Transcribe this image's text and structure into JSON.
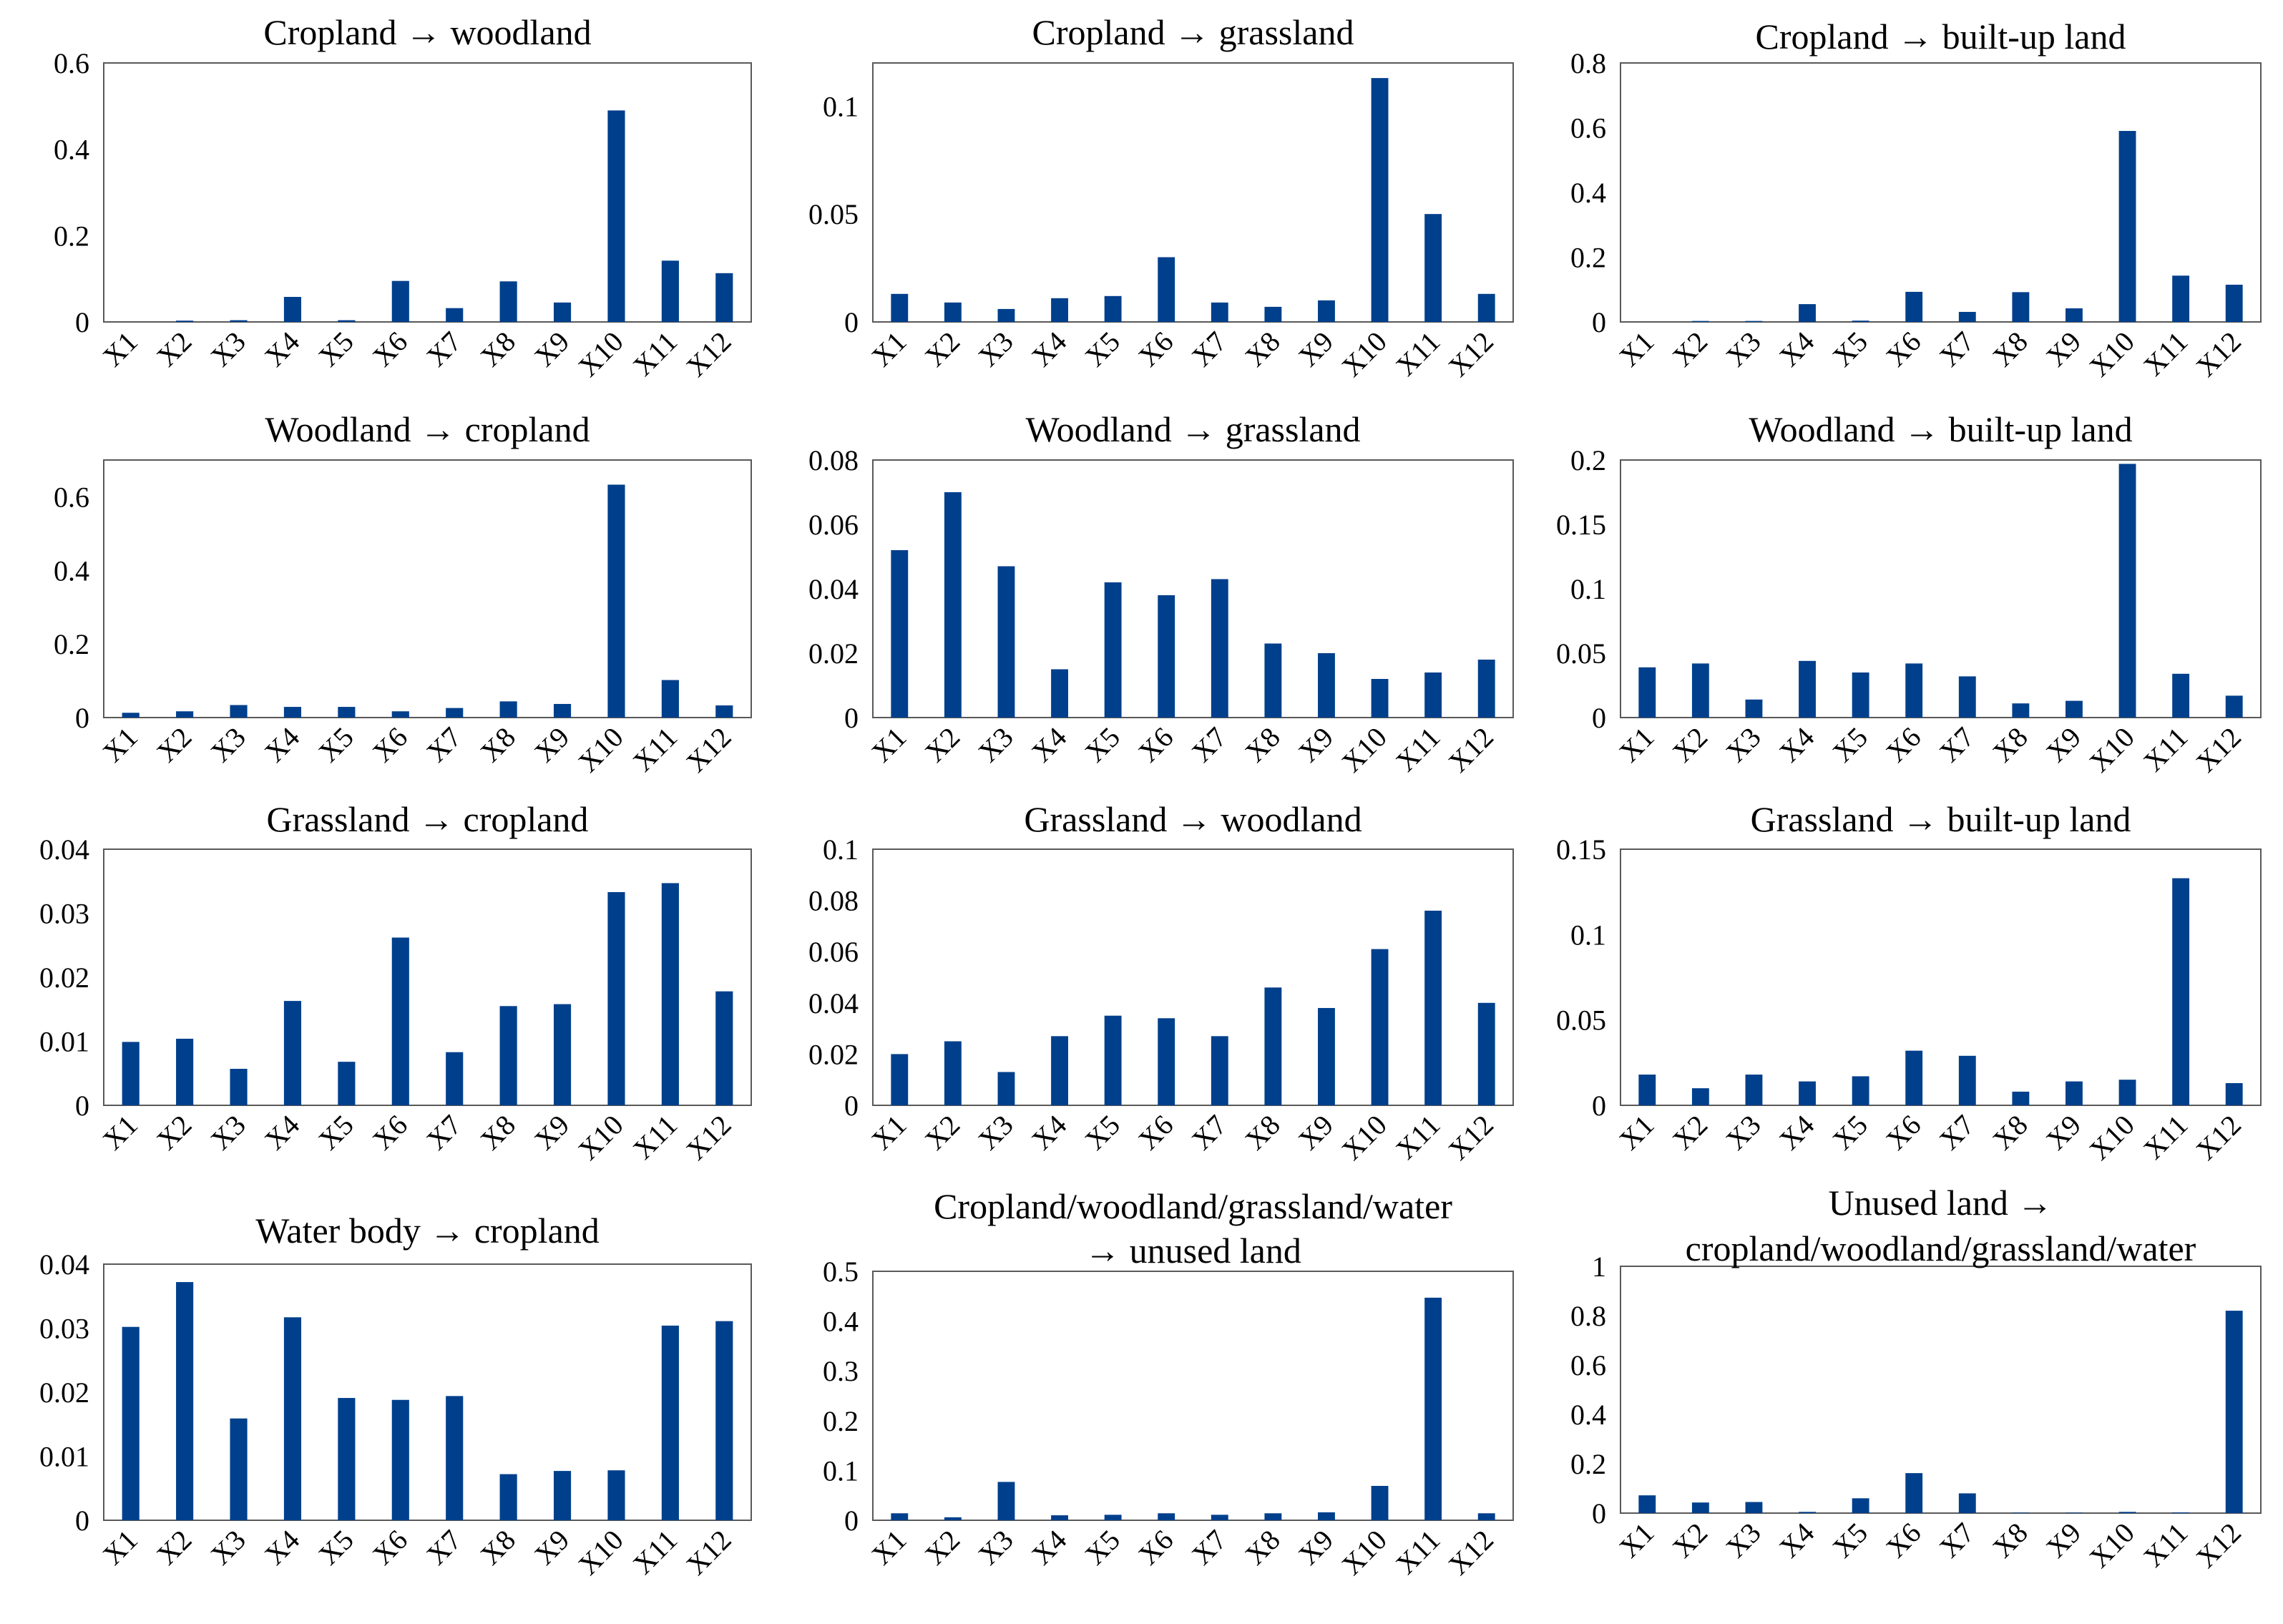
{
  "chart_data": [
    {
      "type": "bar",
      "title": "Cropland → woodland",
      "categories": [
        "X1",
        "X2",
        "X3",
        "X4",
        "X5",
        "X6",
        "X7",
        "X8",
        "X9",
        "X10",
        "X11",
        "X12"
      ],
      "values": [
        0,
        0.003,
        0.004,
        0.058,
        0.004,
        0.095,
        0.032,
        0.094,
        0.045,
        0.49,
        0.142,
        0.113
      ],
      "ylim": [
        0,
        0.6
      ],
      "yticks": [
        "0",
        "0.2",
        "0.4",
        "0.6"
      ]
    },
    {
      "type": "bar",
      "title": "Cropland → grassland",
      "categories": [
        "X1",
        "X2",
        "X3",
        "X4",
        "X5",
        "X6",
        "X7",
        "X8",
        "X9",
        "X10",
        "X11",
        "X12"
      ],
      "values": [
        0.013,
        0.009,
        0.006,
        0.011,
        0.012,
        0.03,
        0.009,
        0.007,
        0.01,
        0.113,
        0.05,
        0.013
      ],
      "ylim": [
        0,
        0.12
      ],
      "yticks": [
        "0",
        "0.05",
        "0.1"
      ]
    },
    {
      "type": "bar",
      "title": "Cropland → built-up land",
      "categories": [
        "X1",
        "X2",
        "X3",
        "X4",
        "X5",
        "X6",
        "X7",
        "X8",
        "X9",
        "X10",
        "X11",
        "X12"
      ],
      "values": [
        0,
        0.003,
        0.003,
        0.055,
        0.004,
        0.093,
        0.031,
        0.092,
        0.042,
        0.59,
        0.143,
        0.115
      ],
      "ylim": [
        0,
        0.8
      ],
      "yticks": [
        "0",
        "0.2",
        "0.4",
        "0.6",
        "0.8"
      ]
    },
    {
      "type": "bar",
      "title": "Woodland → cropland",
      "categories": [
        "X1",
        "X2",
        "X3",
        "X4",
        "X5",
        "X6",
        "X7",
        "X8",
        "X9",
        "X10",
        "X11",
        "X12"
      ],
      "values": [
        0.013,
        0.017,
        0.034,
        0.029,
        0.029,
        0.017,
        0.026,
        0.044,
        0.037,
        0.633,
        0.102,
        0.033
      ],
      "ylim": [
        0,
        0.7
      ],
      "yticks": [
        "0",
        "0.2",
        "0.4",
        "0.6"
      ]
    },
    {
      "type": "bar",
      "title": "Woodland → grassland",
      "categories": [
        "X1",
        "X2",
        "X3",
        "X4",
        "X5",
        "X6",
        "X7",
        "X8",
        "X9",
        "X10",
        "X11",
        "X12"
      ],
      "values": [
        0.052,
        0.07,
        0.047,
        0.015,
        0.042,
        0.038,
        0.043,
        0.023,
        0.02,
        0.012,
        0.014,
        0.018
      ],
      "ylim": [
        0,
        0.08
      ],
      "yticks": [
        "0",
        "0.02",
        "0.04",
        "0.06",
        "0.08"
      ]
    },
    {
      "type": "bar",
      "title": "Woodland → built-up land",
      "categories": [
        "X1",
        "X2",
        "X3",
        "X4",
        "X5",
        "X6",
        "X7",
        "X8",
        "X9",
        "X10",
        "X11",
        "X12"
      ],
      "values": [
        0.039,
        0.042,
        0.014,
        0.044,
        0.035,
        0.042,
        0.032,
        0.011,
        0.013,
        0.197,
        0.034,
        0.017
      ],
      "ylim": [
        0,
        0.2
      ],
      "yticks": [
        "0",
        "0.05",
        "0.1",
        "0.15",
        "0.2"
      ]
    },
    {
      "type": "bar",
      "title": "Grassland → cropland",
      "categories": [
        "X1",
        "X2",
        "X3",
        "X4",
        "X5",
        "X6",
        "X7",
        "X8",
        "X9",
        "X10",
        "X11",
        "X12"
      ],
      "values": [
        0.0099,
        0.0104,
        0.0057,
        0.0163,
        0.0068,
        0.0262,
        0.0083,
        0.0155,
        0.0158,
        0.0333,
        0.0347,
        0.0178
      ],
      "ylim": [
        0,
        0.04
      ],
      "yticks": [
        "0",
        "0.01",
        "0.02",
        "0.03",
        "0.04"
      ]
    },
    {
      "type": "bar",
      "title": "Grassland → woodland",
      "categories": [
        "X1",
        "X2",
        "X3",
        "X4",
        "X5",
        "X6",
        "X7",
        "X8",
        "X9",
        "X10",
        "X11",
        "X12"
      ],
      "values": [
        0.02,
        0.025,
        0.013,
        0.027,
        0.035,
        0.034,
        0.027,
        0.046,
        0.038,
        0.061,
        0.076,
        0.04
      ],
      "ylim": [
        0,
        0.1
      ],
      "yticks": [
        "0",
        "0.02",
        "0.04",
        "0.06",
        "0.08",
        "0.1"
      ]
    },
    {
      "type": "bar",
      "title": "Grassland → built-up land",
      "categories": [
        "X1",
        "X2",
        "X3",
        "X4",
        "X5",
        "X6",
        "X7",
        "X8",
        "X9",
        "X10",
        "X11",
        "X12"
      ],
      "values": [
        0.018,
        0.01,
        0.018,
        0.014,
        0.017,
        0.032,
        0.029,
        0.008,
        0.014,
        0.015,
        0.133,
        0.013
      ],
      "ylim": [
        0,
        0.15
      ],
      "yticks": [
        "0",
        "0.05",
        "0.1",
        "0.15"
      ]
    },
    {
      "type": "bar",
      "title": "Water body → cropland",
      "categories": [
        "X1",
        "X2",
        "X3",
        "X4",
        "X5",
        "X6",
        "X7",
        "X8",
        "X9",
        "X10",
        "X11",
        "X12"
      ],
      "values": [
        0.0302,
        0.0372,
        0.0159,
        0.0317,
        0.0191,
        0.0188,
        0.0194,
        0.0072,
        0.0077,
        0.0078,
        0.0304,
        0.0311
      ],
      "ylim": [
        0,
        0.04
      ],
      "yticks": [
        "0",
        "0.01",
        "0.02",
        "0.03",
        "0.04"
      ]
    },
    {
      "type": "bar",
      "title": "Cropland/woodland/grassland/water → unused land",
      "title_lines": [
        "Cropland/woodland/grassland/water",
        "→ unused land"
      ],
      "categories": [
        "X1",
        "X2",
        "X3",
        "X4",
        "X5",
        "X6",
        "X7",
        "X8",
        "X9",
        "X10",
        "X11",
        "X12"
      ],
      "values": [
        0.014,
        0.006,
        0.077,
        0.01,
        0.011,
        0.014,
        0.011,
        0.014,
        0.016,
        0.069,
        0.447,
        0.014
      ],
      "ylim": [
        0,
        0.5
      ],
      "yticks": [
        "0",
        "0.1",
        "0.2",
        "0.3",
        "0.4",
        "0.5"
      ]
    },
    {
      "type": "bar",
      "title": "Unused land → cropland/woodland/grassland/water",
      "title_lines": [
        "Unused land →",
        "cropland/woodland/grassland/water"
      ],
      "categories": [
        "X1",
        "X2",
        "X3",
        "X4",
        "X5",
        "X6",
        "X7",
        "X8",
        "X9",
        "X10",
        "X11",
        "X12"
      ],
      "values": [
        0.072,
        0.043,
        0.045,
        0.005,
        0.06,
        0.162,
        0.08,
        0.002,
        0.002,
        0.005,
        0.003,
        0.82
      ],
      "ylim": [
        0,
        1
      ],
      "yticks": [
        "0",
        "0.2",
        "0.4",
        "0.6",
        "0.8",
        "1"
      ]
    }
  ]
}
